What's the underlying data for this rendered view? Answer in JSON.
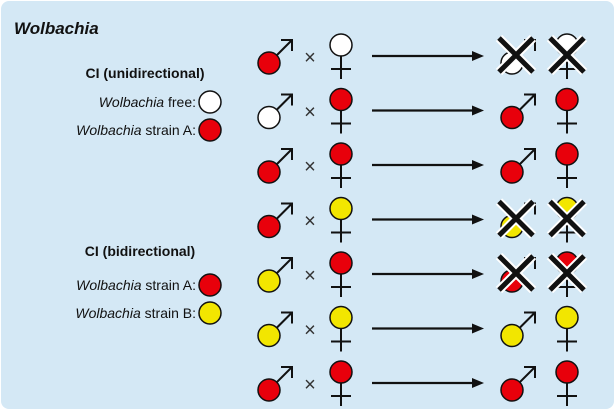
{
  "title": "Wolbachia",
  "colors": {
    "background": "#d4e8f5",
    "free": "#ffffff",
    "strain_a": "#e8000b",
    "strain_b": "#f2e600"
  },
  "unidirectional": {
    "heading": "CI (unidirectional)",
    "legend": [
      {
        "italic": "Wolbachia",
        "rest": " free:",
        "status": "free"
      },
      {
        "italic": "Wolbachia",
        "rest": " strain A:",
        "status": "strain_a"
      }
    ]
  },
  "bidirectional": {
    "heading": "CI (bidirectional)",
    "legend": [
      {
        "italic": "Wolbachia",
        "rest": " strain A:",
        "status": "strain_a"
      },
      {
        "italic": "Wolbachia",
        "rest": " strain B:",
        "status": "strain_b"
      }
    ]
  },
  "cross_symbol": "×",
  "crosses": [
    {
      "male": "strain_a",
      "female": "free",
      "offspring": "free",
      "incompatible": true
    },
    {
      "male": "free",
      "female": "strain_a",
      "offspring": "strain_a",
      "incompatible": false
    },
    {
      "male": "strain_a",
      "female": "strain_a",
      "offspring": "strain_a",
      "incompatible": false
    },
    {
      "male": "strain_a",
      "female": "strain_b",
      "offspring": "strain_b",
      "incompatible": true
    },
    {
      "male": "strain_b",
      "female": "strain_a",
      "offspring": "strain_a",
      "incompatible": true
    },
    {
      "male": "strain_b",
      "female": "strain_b",
      "offspring": "strain_b",
      "incompatible": false
    },
    {
      "male": "strain_a",
      "female": "strain_a",
      "offspring": "strain_a",
      "incompatible": false
    }
  ]
}
